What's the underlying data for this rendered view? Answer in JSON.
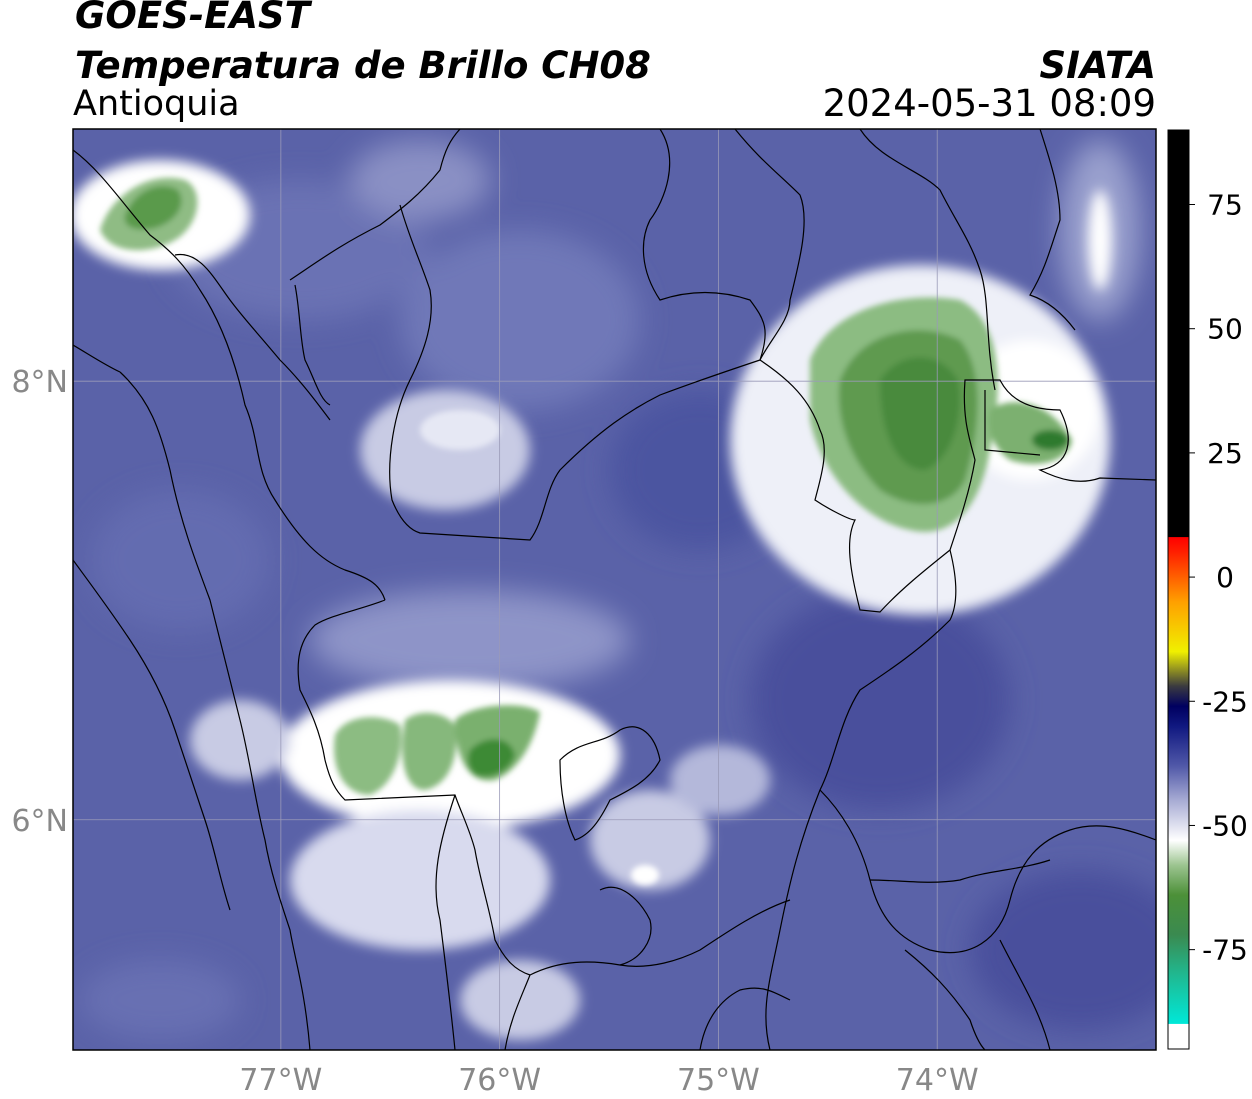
{
  "header": {
    "satellite": "GOES-EAST",
    "product": "Temperatura de Brillo CH08",
    "region": "Antioquia",
    "organization": "SIATA",
    "datetime": "2024-05-31 08:09"
  },
  "map": {
    "lon_range": [
      -77.95,
      -73.0
    ],
    "lat_range": [
      4.95,
      9.15
    ],
    "grid": true,
    "lon_ticks": [
      {
        "value": -77,
        "label": "77°W"
      },
      {
        "value": -76,
        "label": "76°W"
      },
      {
        "value": -75,
        "label": "75°W"
      },
      {
        "value": -74,
        "label": "74°W"
      }
    ],
    "lat_ticks": [
      {
        "value": 8,
        "label": "8°N"
      },
      {
        "value": 6,
        "label": "6°N"
      }
    ],
    "background_color": "#5a62a8",
    "cold_cloud_color": "#4e8e44",
    "cloud_edge_color": "#ffffff",
    "colorbar": {
      "range": [
        -95,
        90
      ],
      "ticks": [
        {
          "value": 75,
          "label": "75"
        },
        {
          "value": 50,
          "label": "50"
        },
        {
          "value": 25,
          "label": "25"
        },
        {
          "value": 0,
          "label": "0"
        },
        {
          "value": -25,
          "label": "-25"
        },
        {
          "value": -50,
          "label": "-50"
        },
        {
          "value": -75,
          "label": "-75"
        }
      ],
      "stops": [
        {
          "value": -95,
          "color": "#ffffff"
        },
        {
          "value": -90,
          "color": "#ffffff"
        },
        {
          "value": -89.9,
          "color": "#00e8d8"
        },
        {
          "value": -80,
          "color": "#20b890"
        },
        {
          "value": -72,
          "color": "#3a8a50"
        },
        {
          "value": -64,
          "color": "#4c9038"
        },
        {
          "value": -58,
          "color": "#9cc490"
        },
        {
          "value": -53,
          "color": "#ffffff"
        },
        {
          "value": -45,
          "color": "#a8acd4"
        },
        {
          "value": -38,
          "color": "#5058a8"
        },
        {
          "value": -30,
          "color": "#101880"
        },
        {
          "value": -26,
          "color": "#000060"
        },
        {
          "value": -22,
          "color": "#3a3a40"
        },
        {
          "value": -15,
          "color": "#f0f000"
        },
        {
          "value": -5,
          "color": "#ffa000"
        },
        {
          "value": 5,
          "color": "#ff2000"
        },
        {
          "value": 8,
          "color": "#ff0000"
        },
        {
          "value": 8.1,
          "color": "#000000"
        },
        {
          "value": 90,
          "color": "#000000"
        }
      ]
    }
  }
}
